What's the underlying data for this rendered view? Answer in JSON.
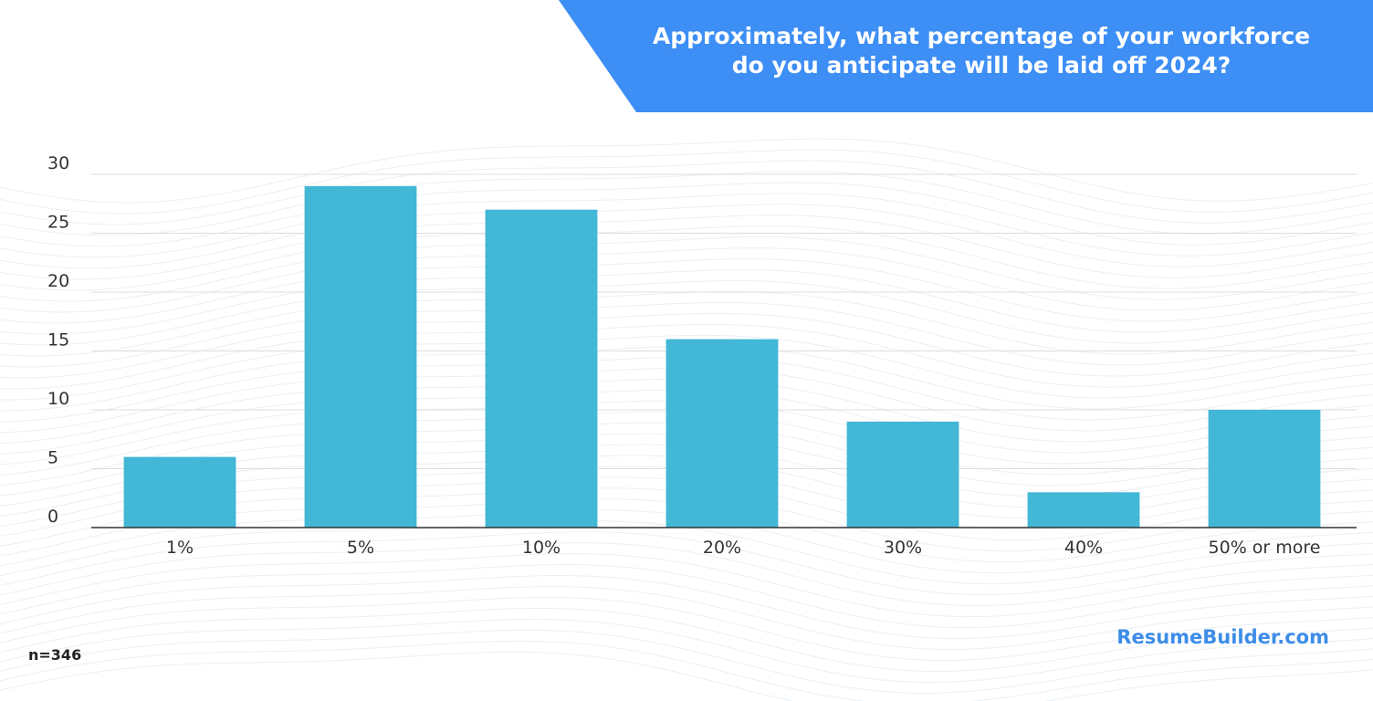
{
  "title": {
    "line1": "Approximately, what percentage of your workforce",
    "line2": "do you anticipate will be laid off 2024?"
  },
  "footnote": "n=346",
  "brand": "ResumeBuilder.com",
  "colors": {
    "banner": "#3d8ef5",
    "bar": "#42b7d6",
    "axis": "#333333",
    "grid": "#dddddd",
    "brand": "#3d8de8"
  },
  "chart_data": {
    "type": "bar",
    "categories": [
      "1%",
      "5%",
      "10%",
      "20%",
      "30%",
      "40%",
      "50% or more"
    ],
    "values": [
      6,
      29,
      27,
      16,
      9,
      3,
      10
    ],
    "yticks": [
      0,
      5,
      10,
      15,
      20,
      25,
      30
    ],
    "ylim": [
      0,
      30
    ],
    "grid": true,
    "legend": "none"
  }
}
